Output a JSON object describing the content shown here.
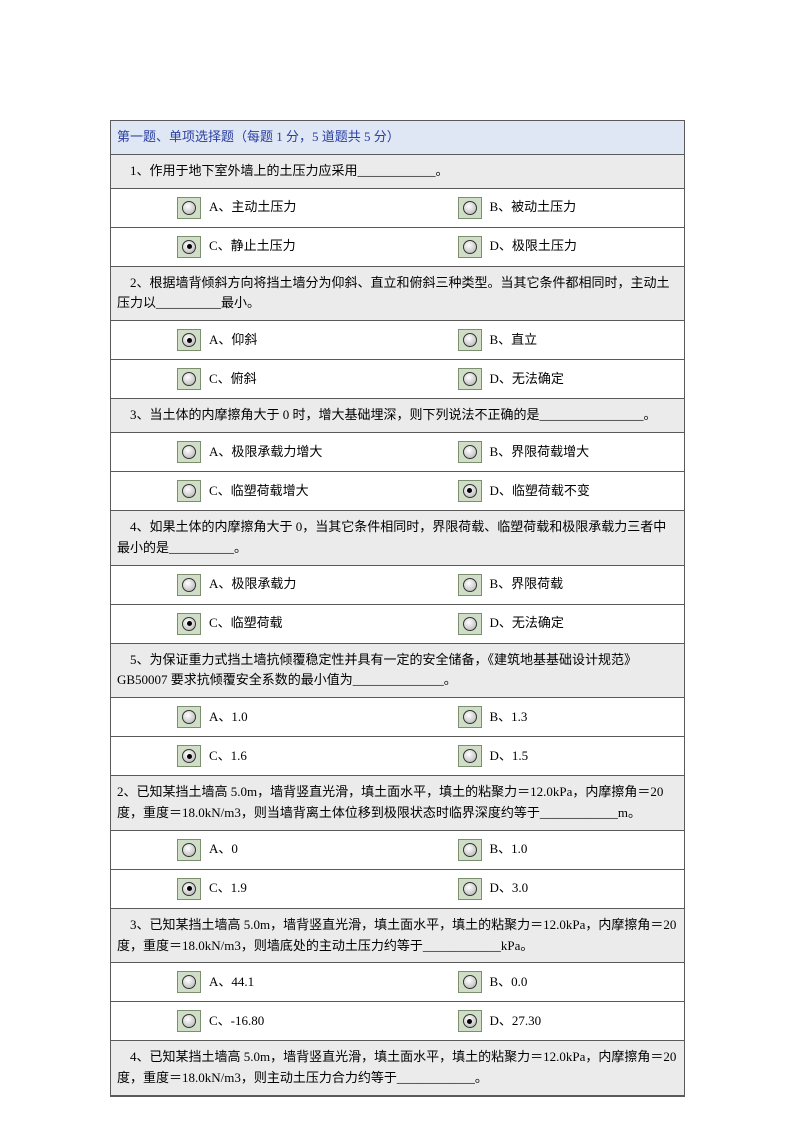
{
  "header": "第一题、单项选择题（每题 1 分，5 道题共 5 分）",
  "colors": {
    "page_bg": "#ffffff",
    "table_border": "#5a5a5a",
    "header_bg": "#dfe7f5",
    "header_text": "#2a3ea0",
    "question_bg": "#ebebeb",
    "radio_bg": "#d0dec8",
    "radio_border": "#7b8f6f",
    "text": "#000000"
  },
  "questions": [
    {
      "text": "　1、作用于地下室外墙上的土压力应采用____________。",
      "options": [
        "A、主动土压力",
        "B、被动土压力",
        "C、静止土压力",
        "D、极限土压力"
      ],
      "selected": "C"
    },
    {
      "text": "　2、根据墙背倾斜方向将挡土墙分为仰斜、直立和俯斜三种类型。当其它条件都相同时，主动土压力以__________最小。",
      "options": [
        "A、仰斜",
        "B、直立",
        "C、俯斜",
        "D、无法确定"
      ],
      "selected": "A"
    },
    {
      "text": "　3、当土体的内摩擦角大于 0 时，增大基础埋深，则下列说法不正确的是________________。",
      "options": [
        "A、极限承载力增大",
        "B、界限荷载增大",
        "C、临塑荷载增大",
        "D、临塑荷载不变"
      ],
      "selected": "D"
    },
    {
      "text": "　4、如果土体的内摩擦角大于 0，当其它条件相同时，界限荷载、临塑荷载和极限承载力三者中最小的是__________。",
      "options": [
        "A、极限承载力",
        "B、界限荷载",
        "C、临塑荷载",
        "D、无法确定"
      ],
      "selected": "C"
    },
    {
      "text": "　5、为保证重力式挡土墙抗倾覆稳定性并具有一定的安全储备，《建筑地基基础设计规范》GB50007 要求抗倾覆安全系数的最小值为______________。",
      "options": [
        "A、1.0",
        "B、1.3",
        "C、1.6",
        "D、1.5"
      ],
      "selected": "C"
    },
    {
      "text": "2、已知某挡土墙高 5.0m，墙背竖直光滑，填土面水平，填土的粘聚力＝12.0kPa，内摩擦角＝20 度，重度＝18.0kN/m3，则当墙背离土体位移到极限状态时临界深度约等于____________m。",
      "options": [
        "A、0",
        "B、1.0",
        "C、1.9",
        "D、3.0"
      ],
      "selected": "C"
    },
    {
      "text": "　3、已知某挡土墙高 5.0m，墙背竖直光滑，填土面水平，填土的粘聚力＝12.0kPa，内摩擦角＝20 度，重度＝18.0kN/m3，则墙底处的主动土压力约等于____________kPa。",
      "options": [
        "A、44.1",
        "B、0.0",
        "C、-16.80",
        "D、27.30"
      ],
      "selected": "D"
    },
    {
      "text": "　4、已知某挡土墙高 5.0m，墙背竖直光滑，填土面水平，填土的粘聚力＝12.0kPa，内摩擦角＝20 度，重度＝18.0kN/m3，则主动土压力合力约等于____________。",
      "options": [],
      "selected": null
    }
  ]
}
